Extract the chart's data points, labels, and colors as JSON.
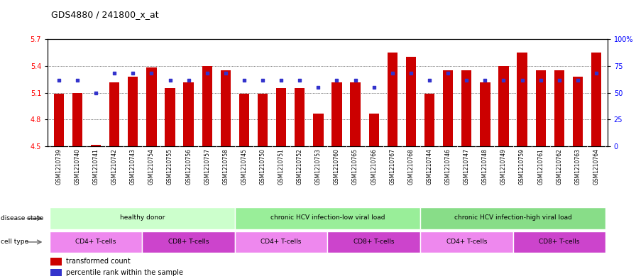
{
  "title": "GDS4880 / 241800_x_at",
  "samples": [
    "GSM1210739",
    "GSM1210740",
    "GSM1210741",
    "GSM1210742",
    "GSM1210743",
    "GSM1210754",
    "GSM1210755",
    "GSM1210756",
    "GSM1210757",
    "GSM1210758",
    "GSM1210745",
    "GSM1210750",
    "GSM1210751",
    "GSM1210752",
    "GSM1210753",
    "GSM1210760",
    "GSM1210765",
    "GSM1210766",
    "GSM1210767",
    "GSM1210768",
    "GSM1210744",
    "GSM1210746",
    "GSM1210747",
    "GSM1210748",
    "GSM1210749",
    "GSM1210759",
    "GSM1210761",
    "GSM1210762",
    "GSM1210763",
    "GSM1210764"
  ],
  "bar_values": [
    5.09,
    5.1,
    4.52,
    5.22,
    5.28,
    5.38,
    5.15,
    5.22,
    5.4,
    5.35,
    5.09,
    5.09,
    5.15,
    5.15,
    4.87,
    5.22,
    5.22,
    4.87,
    5.55,
    5.5,
    5.09,
    5.35,
    5.35,
    5.22,
    5.4,
    5.55,
    5.35,
    5.35,
    5.28,
    5.55
  ],
  "percentile_values": [
    62,
    62,
    50,
    68,
    68,
    68,
    62,
    62,
    68,
    68,
    62,
    62,
    62,
    62,
    55,
    62,
    62,
    55,
    68,
    68,
    62,
    68,
    62,
    62,
    62,
    62,
    62,
    62,
    62,
    68
  ],
  "ylim_left": [
    4.5,
    5.7
  ],
  "ylim_right": [
    0,
    100
  ],
  "yticks_left": [
    4.5,
    4.8,
    5.1,
    5.4,
    5.7
  ],
  "yticks_right": [
    0,
    25,
    50,
    75,
    100
  ],
  "ytick_labels_right": [
    "0",
    "25",
    "50",
    "75",
    "100%"
  ],
  "bar_color": "#cc0000",
  "dot_color": "#3333cc",
  "disease_groups": [
    {
      "label": "healthy donor",
      "start": 0,
      "end": 9,
      "color": "#ccffcc"
    },
    {
      "label": "chronic HCV infection-low viral load",
      "start": 10,
      "end": 19,
      "color": "#99ee99"
    },
    {
      "label": "chronic HCV infection-high viral load",
      "start": 20,
      "end": 29,
      "color": "#88dd88"
    }
  ],
  "cell_type_groups": [
    {
      "label": "CD4+ T-cells",
      "start": 0,
      "end": 4,
      "color": "#ee88ee"
    },
    {
      "label": "CD8+ T-cells",
      "start": 5,
      "end": 9,
      "color": "#cc44cc"
    },
    {
      "label": "CD4+ T-cells",
      "start": 10,
      "end": 14,
      "color": "#ee88ee"
    },
    {
      "label": "CD8+ T-cells",
      "start": 15,
      "end": 19,
      "color": "#cc44cc"
    },
    {
      "label": "CD4+ T-cells",
      "start": 20,
      "end": 24,
      "color": "#ee88ee"
    },
    {
      "label": "CD8+ T-cells",
      "start": 25,
      "end": 29,
      "color": "#cc44cc"
    }
  ],
  "legend_bar_label": "transformed count",
  "legend_dot_label": "percentile rank within the sample",
  "background_color": "#ffffff",
  "tick_area_bg": "#cccccc"
}
